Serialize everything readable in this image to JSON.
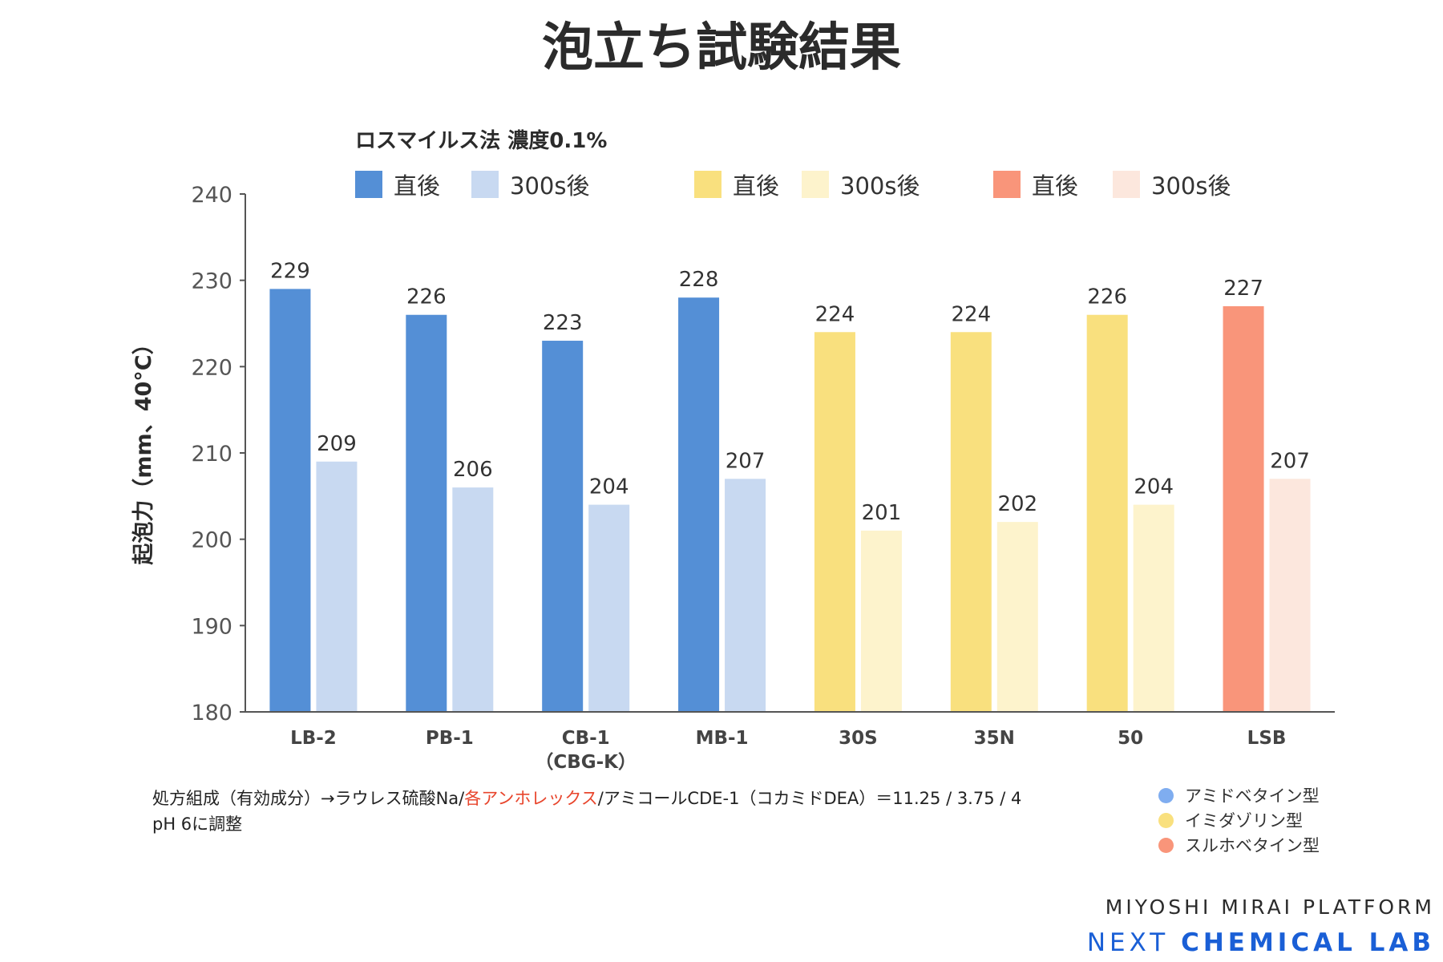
{
  "title": "泡立ち試験結果",
  "colors": {
    "amido_immediate": "#548fd6",
    "amido_300s": "#c8d9f1",
    "imida_immediate": "#f9e07e",
    "imida_300s": "#fdf3cc",
    "sulfo_immediate": "#f9957a",
    "sulfo_300s": "#fce7dd",
    "axis": "#555555",
    "note_highlight": "#e8452c",
    "brand_accent": "#1a5fd6"
  },
  "legend": {
    "groups": [
      {
        "items": [
          {
            "label": "直後",
            "color": "#548fd6"
          },
          {
            "label": "300s後",
            "color": "#c8d9f1"
          }
        ]
      },
      {
        "items": [
          {
            "label": "直後",
            "color": "#f9e07e"
          },
          {
            "label": "300s後",
            "color": "#fdf3cc"
          }
        ]
      },
      {
        "items": [
          {
            "label": "直後",
            "color": "#f9957a"
          },
          {
            "label": "300s後",
            "color": "#fce7dd"
          }
        ]
      }
    ]
  },
  "chart_data": {
    "type": "bar",
    "title": "ロスマイルス法 濃度0.1%",
    "ylabel": "起泡力（mm、40°C）",
    "xlabel": "",
    "ylim": [
      180,
      240
    ],
    "yticks": [
      "180",
      "190",
      "200",
      "210",
      "220",
      "230",
      "240"
    ],
    "categories": [
      "LB-2",
      "PB-1",
      "CB-1\n（CBG-K）",
      "MB-1",
      "30S",
      "35N",
      "50",
      "LSB"
    ],
    "series": [
      {
        "name": "直後",
        "values": [
          229,
          226,
          223,
          228,
          224,
          224,
          226,
          227
        ]
      },
      {
        "name": "300s後",
        "values": [
          209,
          206,
          204,
          207,
          201,
          202,
          204,
          207
        ]
      }
    ],
    "category_types": [
      "amido",
      "amido",
      "amido",
      "amido",
      "imida",
      "imida",
      "imida",
      "sulfo"
    ],
    "grid": false,
    "legend_position": "top"
  },
  "notes": {
    "line1_prefix": "処方組成（有効成分）→ラウレス硫酸Na/",
    "line1_highlight": "各アンホレックス",
    "line1_suffix": "/アミコールCDE-1（コカミドDEA）＝11.25 / 3.75 / 4",
    "line2": "pH 6に調整"
  },
  "type_legend": [
    {
      "label": "アミドベタイン型",
      "color": "#7fadf0"
    },
    {
      "label": "イミダゾリン型",
      "color": "#f9e07e"
    },
    {
      "label": "スルホベタイン型",
      "color": "#f9957a"
    }
  ],
  "brand": {
    "line1": "MIYOSHI MIRAI PLATFORM",
    "line2_prefix": "NEXT ",
    "line2_bold": "CHEMICAL LAB"
  }
}
